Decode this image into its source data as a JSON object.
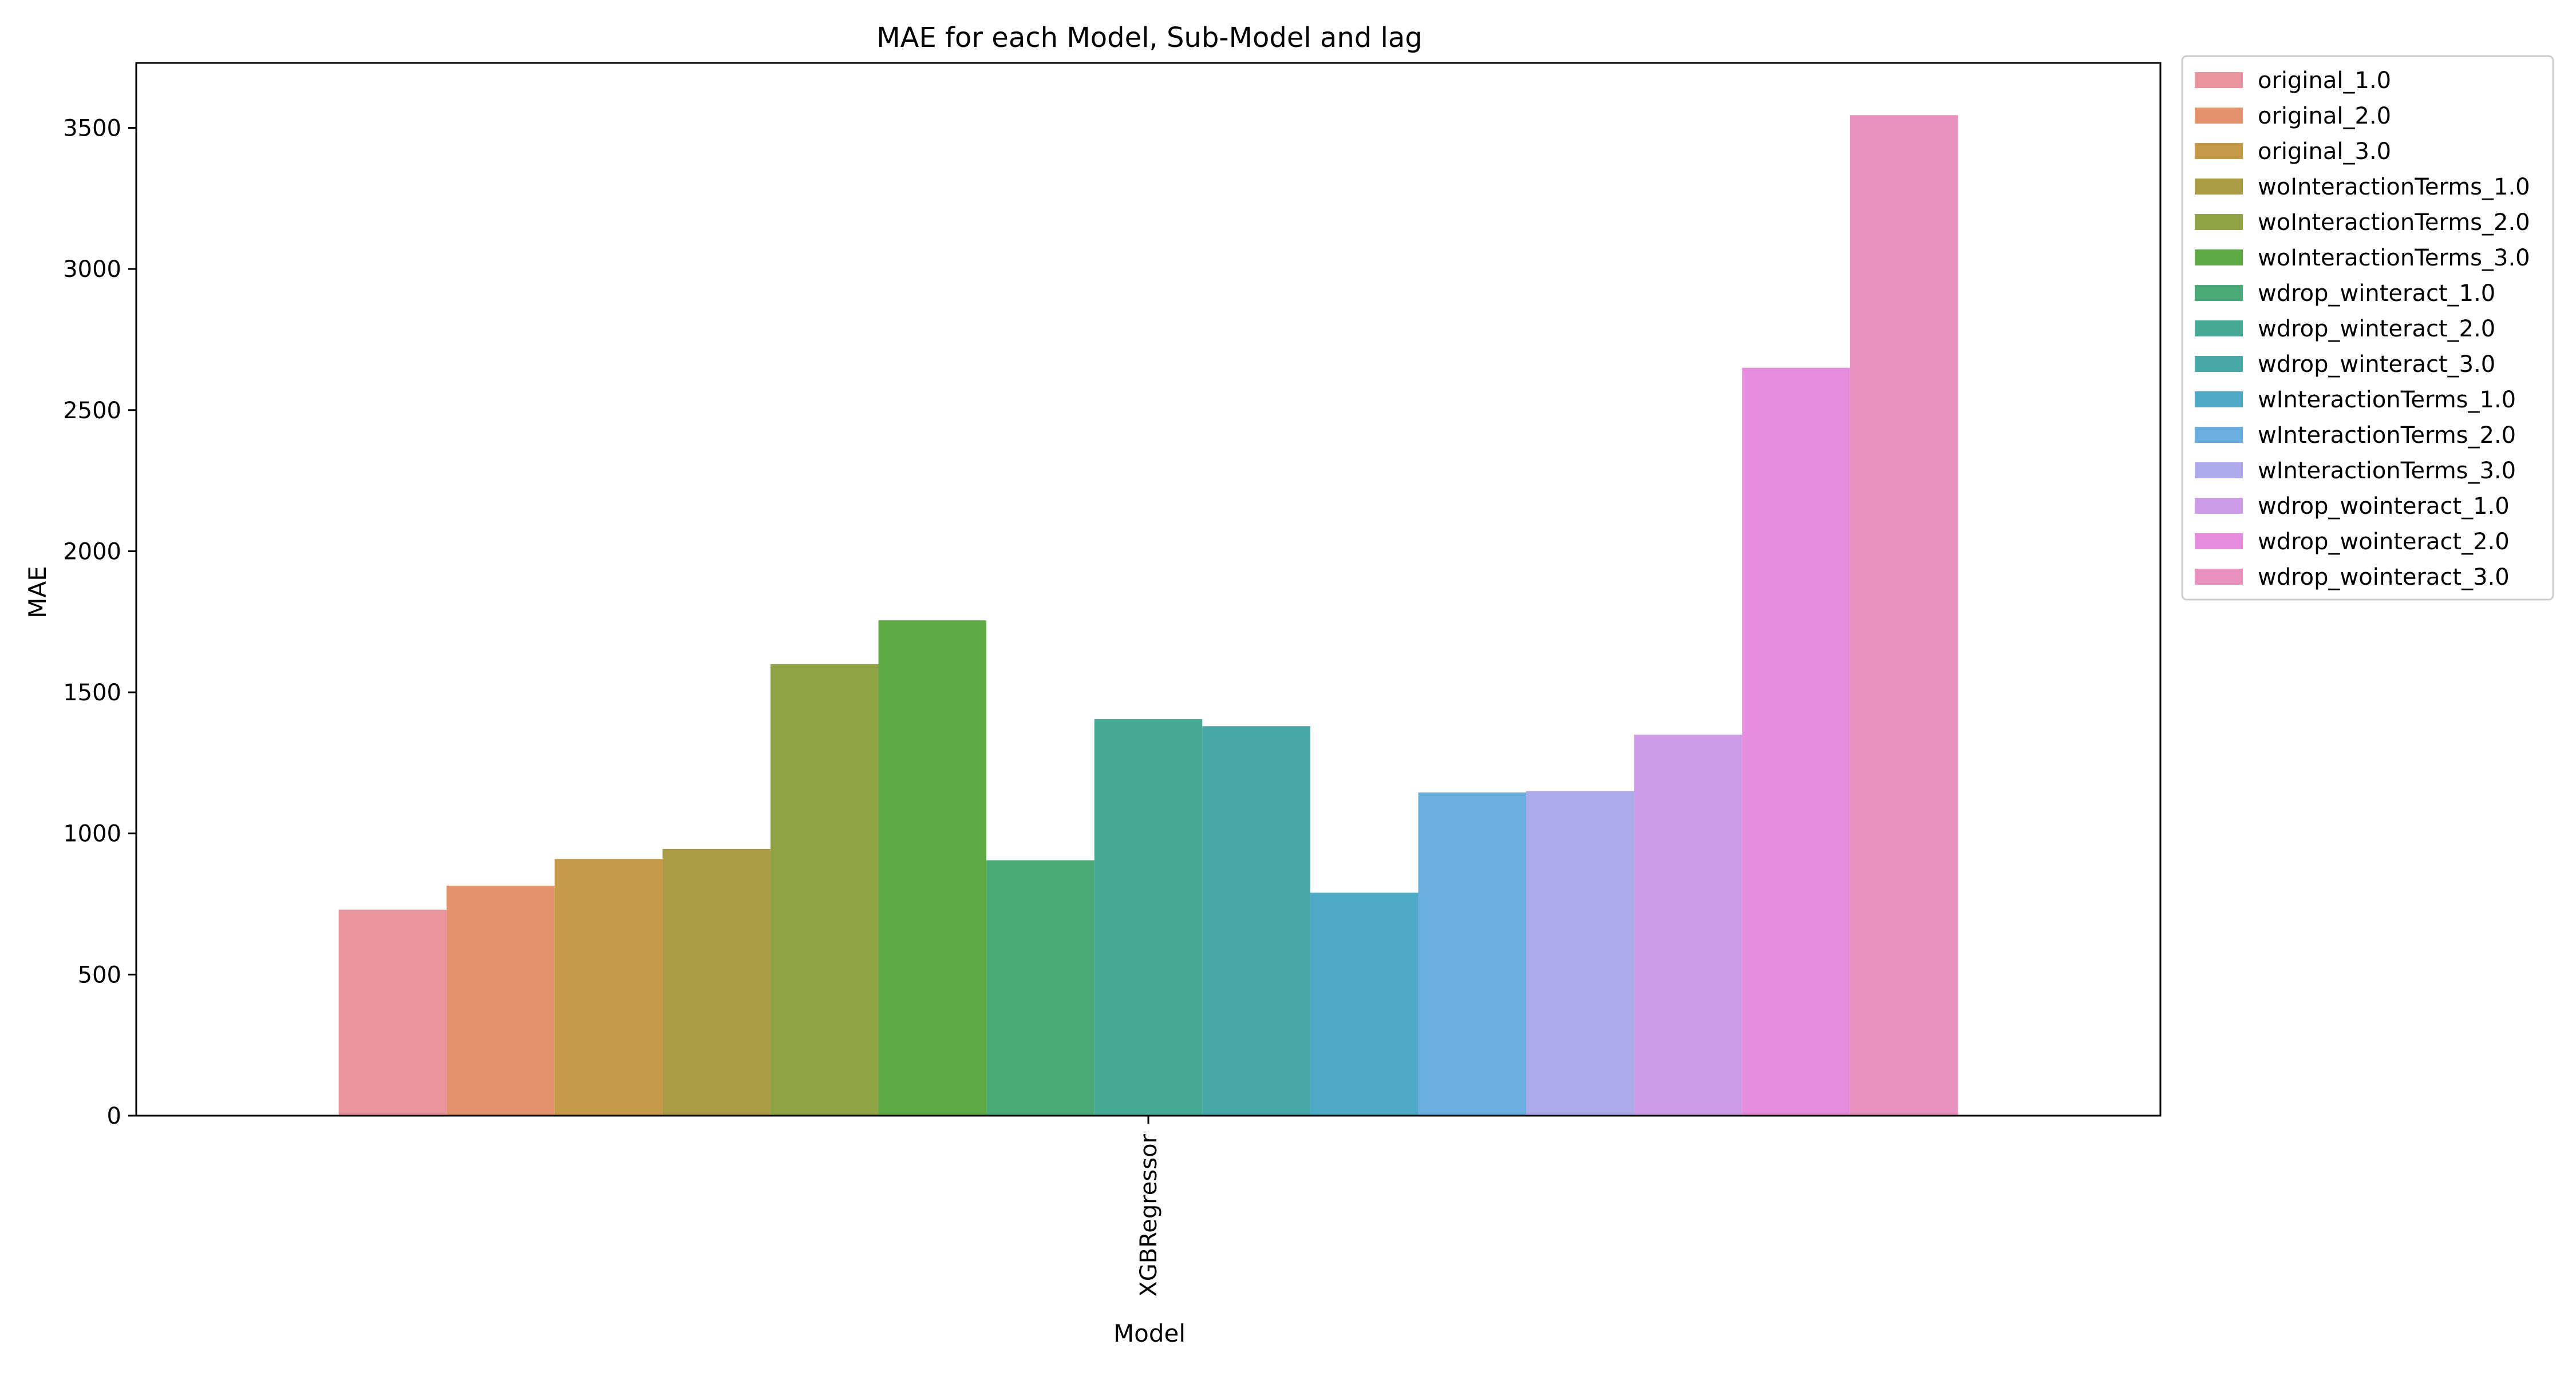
{
  "chart_data": {
    "type": "bar",
    "title": "MAE for each Model, Sub-Model and lag",
    "xlabel": "Model",
    "ylabel": "MAE",
    "categories": [
      "XGBRegressor"
    ],
    "ylim": [
      0,
      3730
    ],
    "yticks": [
      0,
      500,
      1000,
      1500,
      2000,
      2500,
      3000,
      3500
    ],
    "grid": false,
    "legend_position": "outside-top-right",
    "series": [
      {
        "name": "original_1.0",
        "values": [
          730
        ],
        "color": "#e8949f"
      },
      {
        "name": "original_2.0",
        "values": [
          815
        ],
        "color": "#e2936e"
      },
      {
        "name": "original_3.0",
        "values": [
          910
        ],
        "color": "#c69a4b"
      },
      {
        "name": "woInteractionTerms_1.0",
        "values": [
          945
        ],
        "color": "#aa9c46"
      },
      {
        "name": "woInteractionTerms_2.0",
        "values": [
          1600
        ],
        "color": "#8fa245"
      },
      {
        "name": "woInteractionTerms_3.0",
        "values": [
          1755
        ],
        "color": "#5faa47"
      },
      {
        "name": "wdrop_winteract_1.0",
        "values": [
          905
        ],
        "color": "#4baa78"
      },
      {
        "name": "wdrop_winteract_2.0",
        "values": [
          1405
        ],
        "color": "#48aa94"
      },
      {
        "name": "wdrop_winteract_3.0",
        "values": [
          1380
        ],
        "color": "#4aa8a8"
      },
      {
        "name": "wInteractionTerms_1.0",
        "values": [
          790
        ],
        "color": "#4eaac4"
      },
      {
        "name": "wInteractionTerms_2.0",
        "values": [
          1145
        ],
        "color": "#6aaee0"
      },
      {
        "name": "wInteractionTerms_3.0",
        "values": [
          1150
        ],
        "color": "#aeaaea"
      },
      {
        "name": "wdrop_wointeract_1.0",
        "values": [
          1350
        ],
        "color": "#cc9ce6"
      },
      {
        "name": "wdrop_wointeract_2.0",
        "values": [
          2650
        ],
        "color": "#e68cdc"
      },
      {
        "name": "wdrop_wointeract_3.0",
        "values": [
          3545
        ],
        "color": "#e890be"
      }
    ]
  }
}
